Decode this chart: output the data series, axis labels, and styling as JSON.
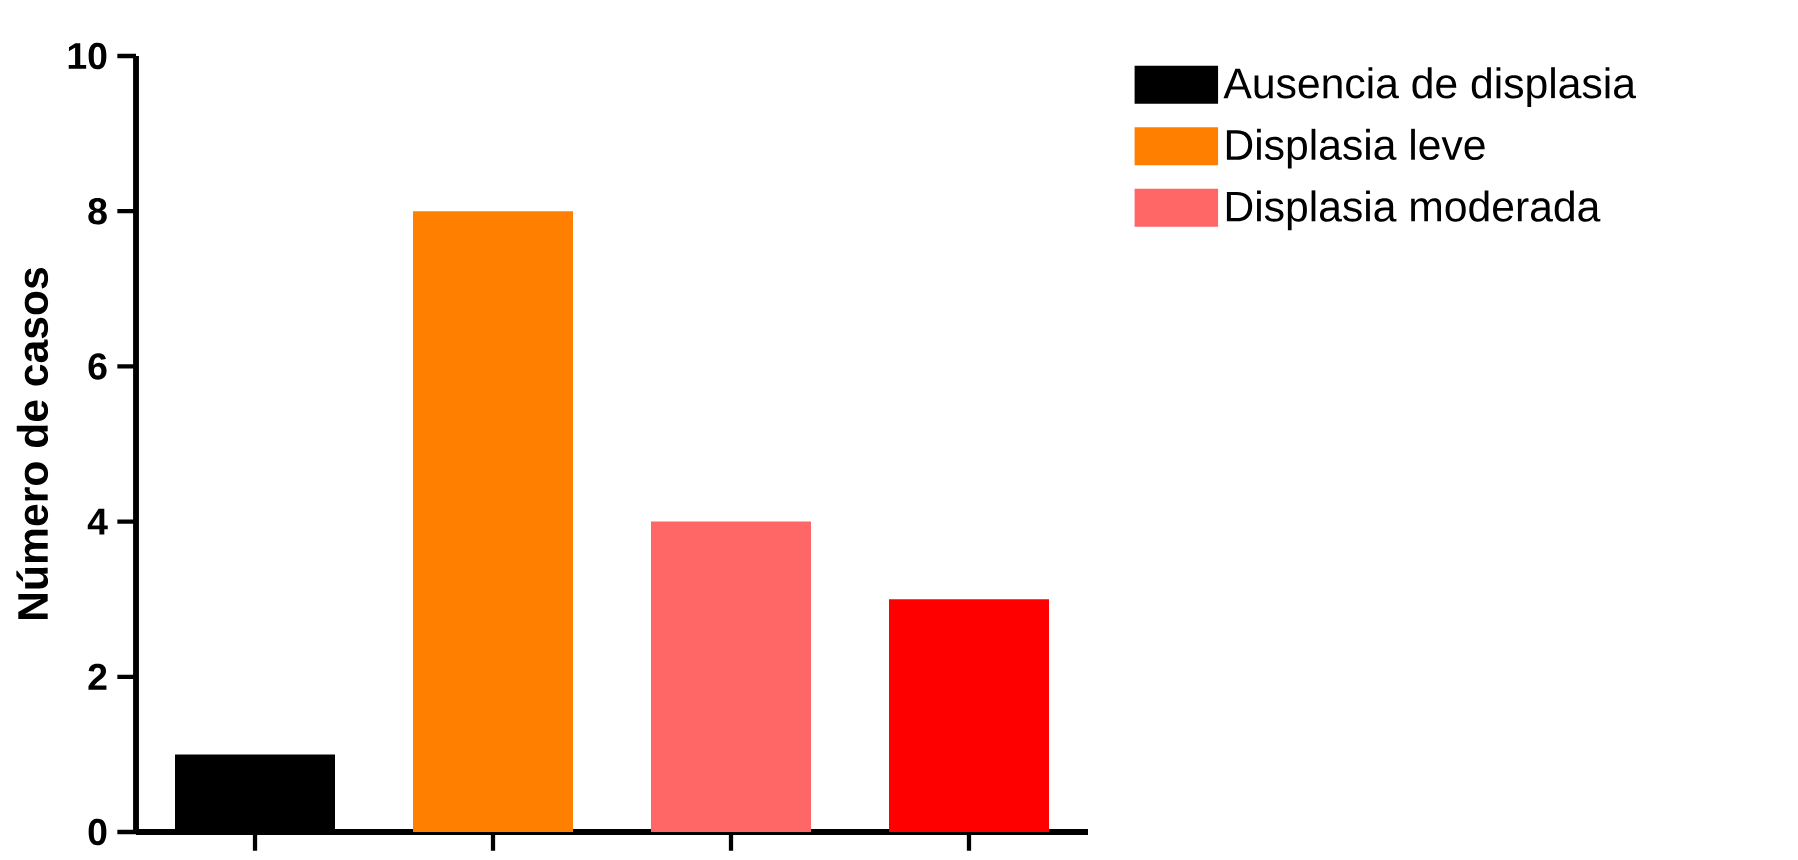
{
  "chart_data": {
    "type": "bar",
    "ylabel": "Número de casos",
    "categories": [
      null,
      null,
      null,
      null
    ],
    "series": [
      {
        "name": "Ausencia de displasia",
        "color": "#000000",
        "values": [
          1,
          null,
          null,
          null
        ]
      },
      {
        "name": "Displasia leve",
        "color": "#ff8000",
        "values": [
          null,
          8,
          null,
          null
        ]
      },
      {
        "name": "Displasia moderada",
        "color": "#ff6666",
        "values": [
          null,
          null,
          4,
          null
        ]
      },
      {
        "color": "#ff0000",
        "values": [
          null,
          null,
          null,
          3
        ]
      }
    ],
    "ylim": [
      0,
      10
    ],
    "yticks": [
      0,
      2,
      4,
      6,
      8,
      10
    ],
    "legend": "top right"
  }
}
